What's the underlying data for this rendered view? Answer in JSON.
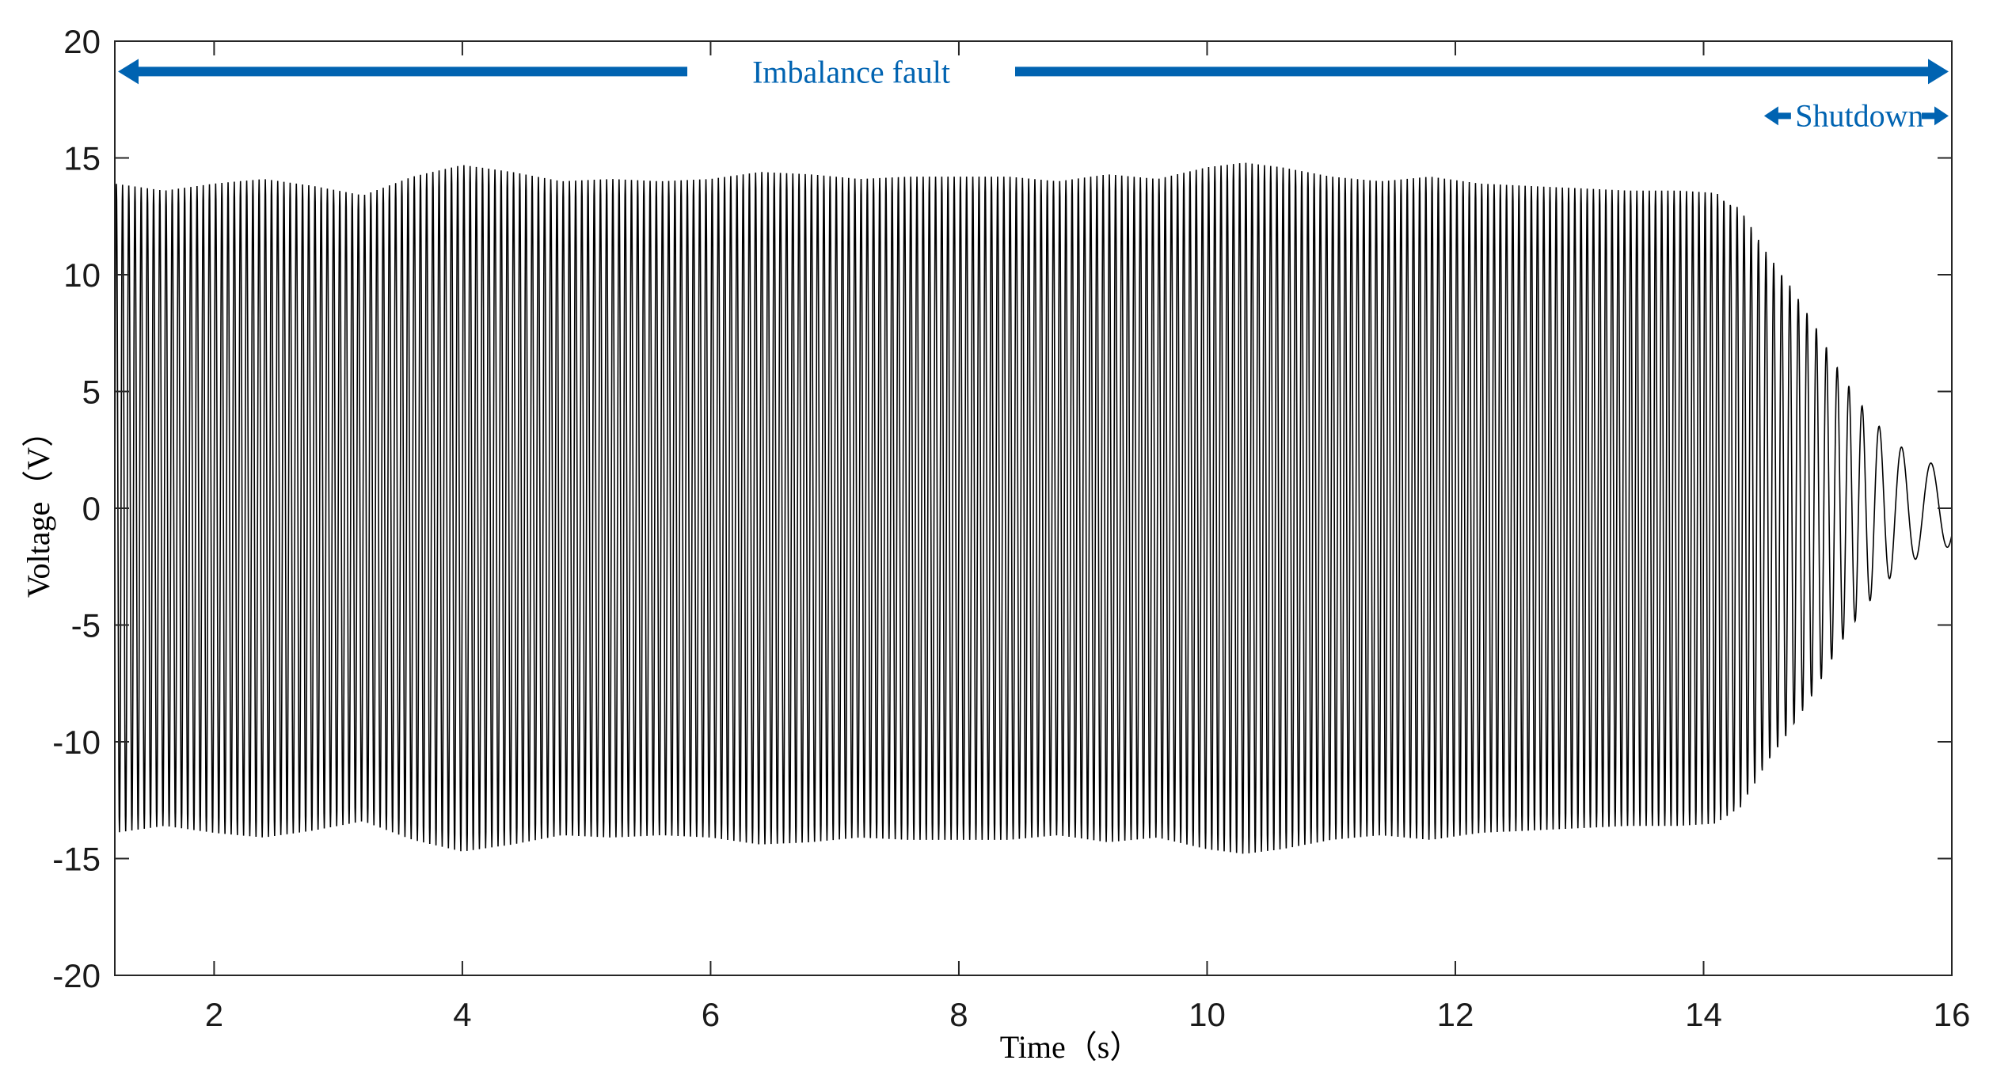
{
  "chart_data": {
    "type": "line",
    "xlabel": "Time（s）",
    "ylabel": "Voltage（V）",
    "xlim": [
      1.2,
      16
    ],
    "ylim": [
      -20,
      20
    ],
    "x_ticks": [
      2,
      4,
      6,
      8,
      10,
      12,
      14,
      16
    ],
    "y_ticks": [
      20,
      15,
      10,
      5,
      0,
      -5,
      -10,
      -15,
      -20
    ],
    "grid": false,
    "line_color": "#000000",
    "annotation_color": "#0063b1",
    "series": [
      {
        "signal": "oscillating voltage",
        "oscillation_period_s": 0.05,
        "envelope_amplitude": [
          [
            1.2,
            13.9
          ],
          [
            1.6,
            13.6
          ],
          [
            2.0,
            13.9
          ],
          [
            2.4,
            14.1
          ],
          [
            2.8,
            13.8
          ],
          [
            3.2,
            13.4
          ],
          [
            3.6,
            14.2
          ],
          [
            4.0,
            14.7
          ],
          [
            4.4,
            14.4
          ],
          [
            4.8,
            14.0
          ],
          [
            5.2,
            14.1
          ],
          [
            5.6,
            14.0
          ],
          [
            6.0,
            14.1
          ],
          [
            6.4,
            14.4
          ],
          [
            6.8,
            14.3
          ],
          [
            7.2,
            14.1
          ],
          [
            7.6,
            14.2
          ],
          [
            8.0,
            14.2
          ],
          [
            8.4,
            14.2
          ],
          [
            8.8,
            14.0
          ],
          [
            9.2,
            14.3
          ],
          [
            9.6,
            14.1
          ],
          [
            10.0,
            14.6
          ],
          [
            10.3,
            14.8
          ],
          [
            10.6,
            14.6
          ],
          [
            11.0,
            14.2
          ],
          [
            11.4,
            14.0
          ],
          [
            11.8,
            14.2
          ],
          [
            12.2,
            13.9
          ],
          [
            12.6,
            13.8
          ],
          [
            13.0,
            13.7
          ],
          [
            13.4,
            13.6
          ],
          [
            13.8,
            13.6
          ],
          [
            14.1,
            13.5
          ],
          [
            14.3,
            12.8
          ],
          [
            14.5,
            11.0
          ],
          [
            14.7,
            9.5
          ],
          [
            14.9,
            7.8
          ],
          [
            15.1,
            5.8
          ],
          [
            15.3,
            4.2
          ],
          [
            15.5,
            3.0
          ],
          [
            15.7,
            2.2
          ],
          [
            15.85,
            1.9
          ],
          [
            16.0,
            1.6
          ]
        ],
        "late_period_s": [
          [
            14.1,
            0.05
          ],
          [
            14.8,
            0.07
          ],
          [
            15.2,
            0.1
          ],
          [
            15.5,
            0.18
          ],
          [
            15.7,
            0.24
          ],
          [
            16.0,
            0.28
          ]
        ]
      }
    ],
    "annotations": [
      {
        "text": "Imbalance fault",
        "x_start": 1.2,
        "x_end": 16,
        "y": 18.7
      },
      {
        "text": "Shutdown",
        "x_start": 14.5,
        "x_end": 16,
        "y": 16.8
      }
    ]
  }
}
